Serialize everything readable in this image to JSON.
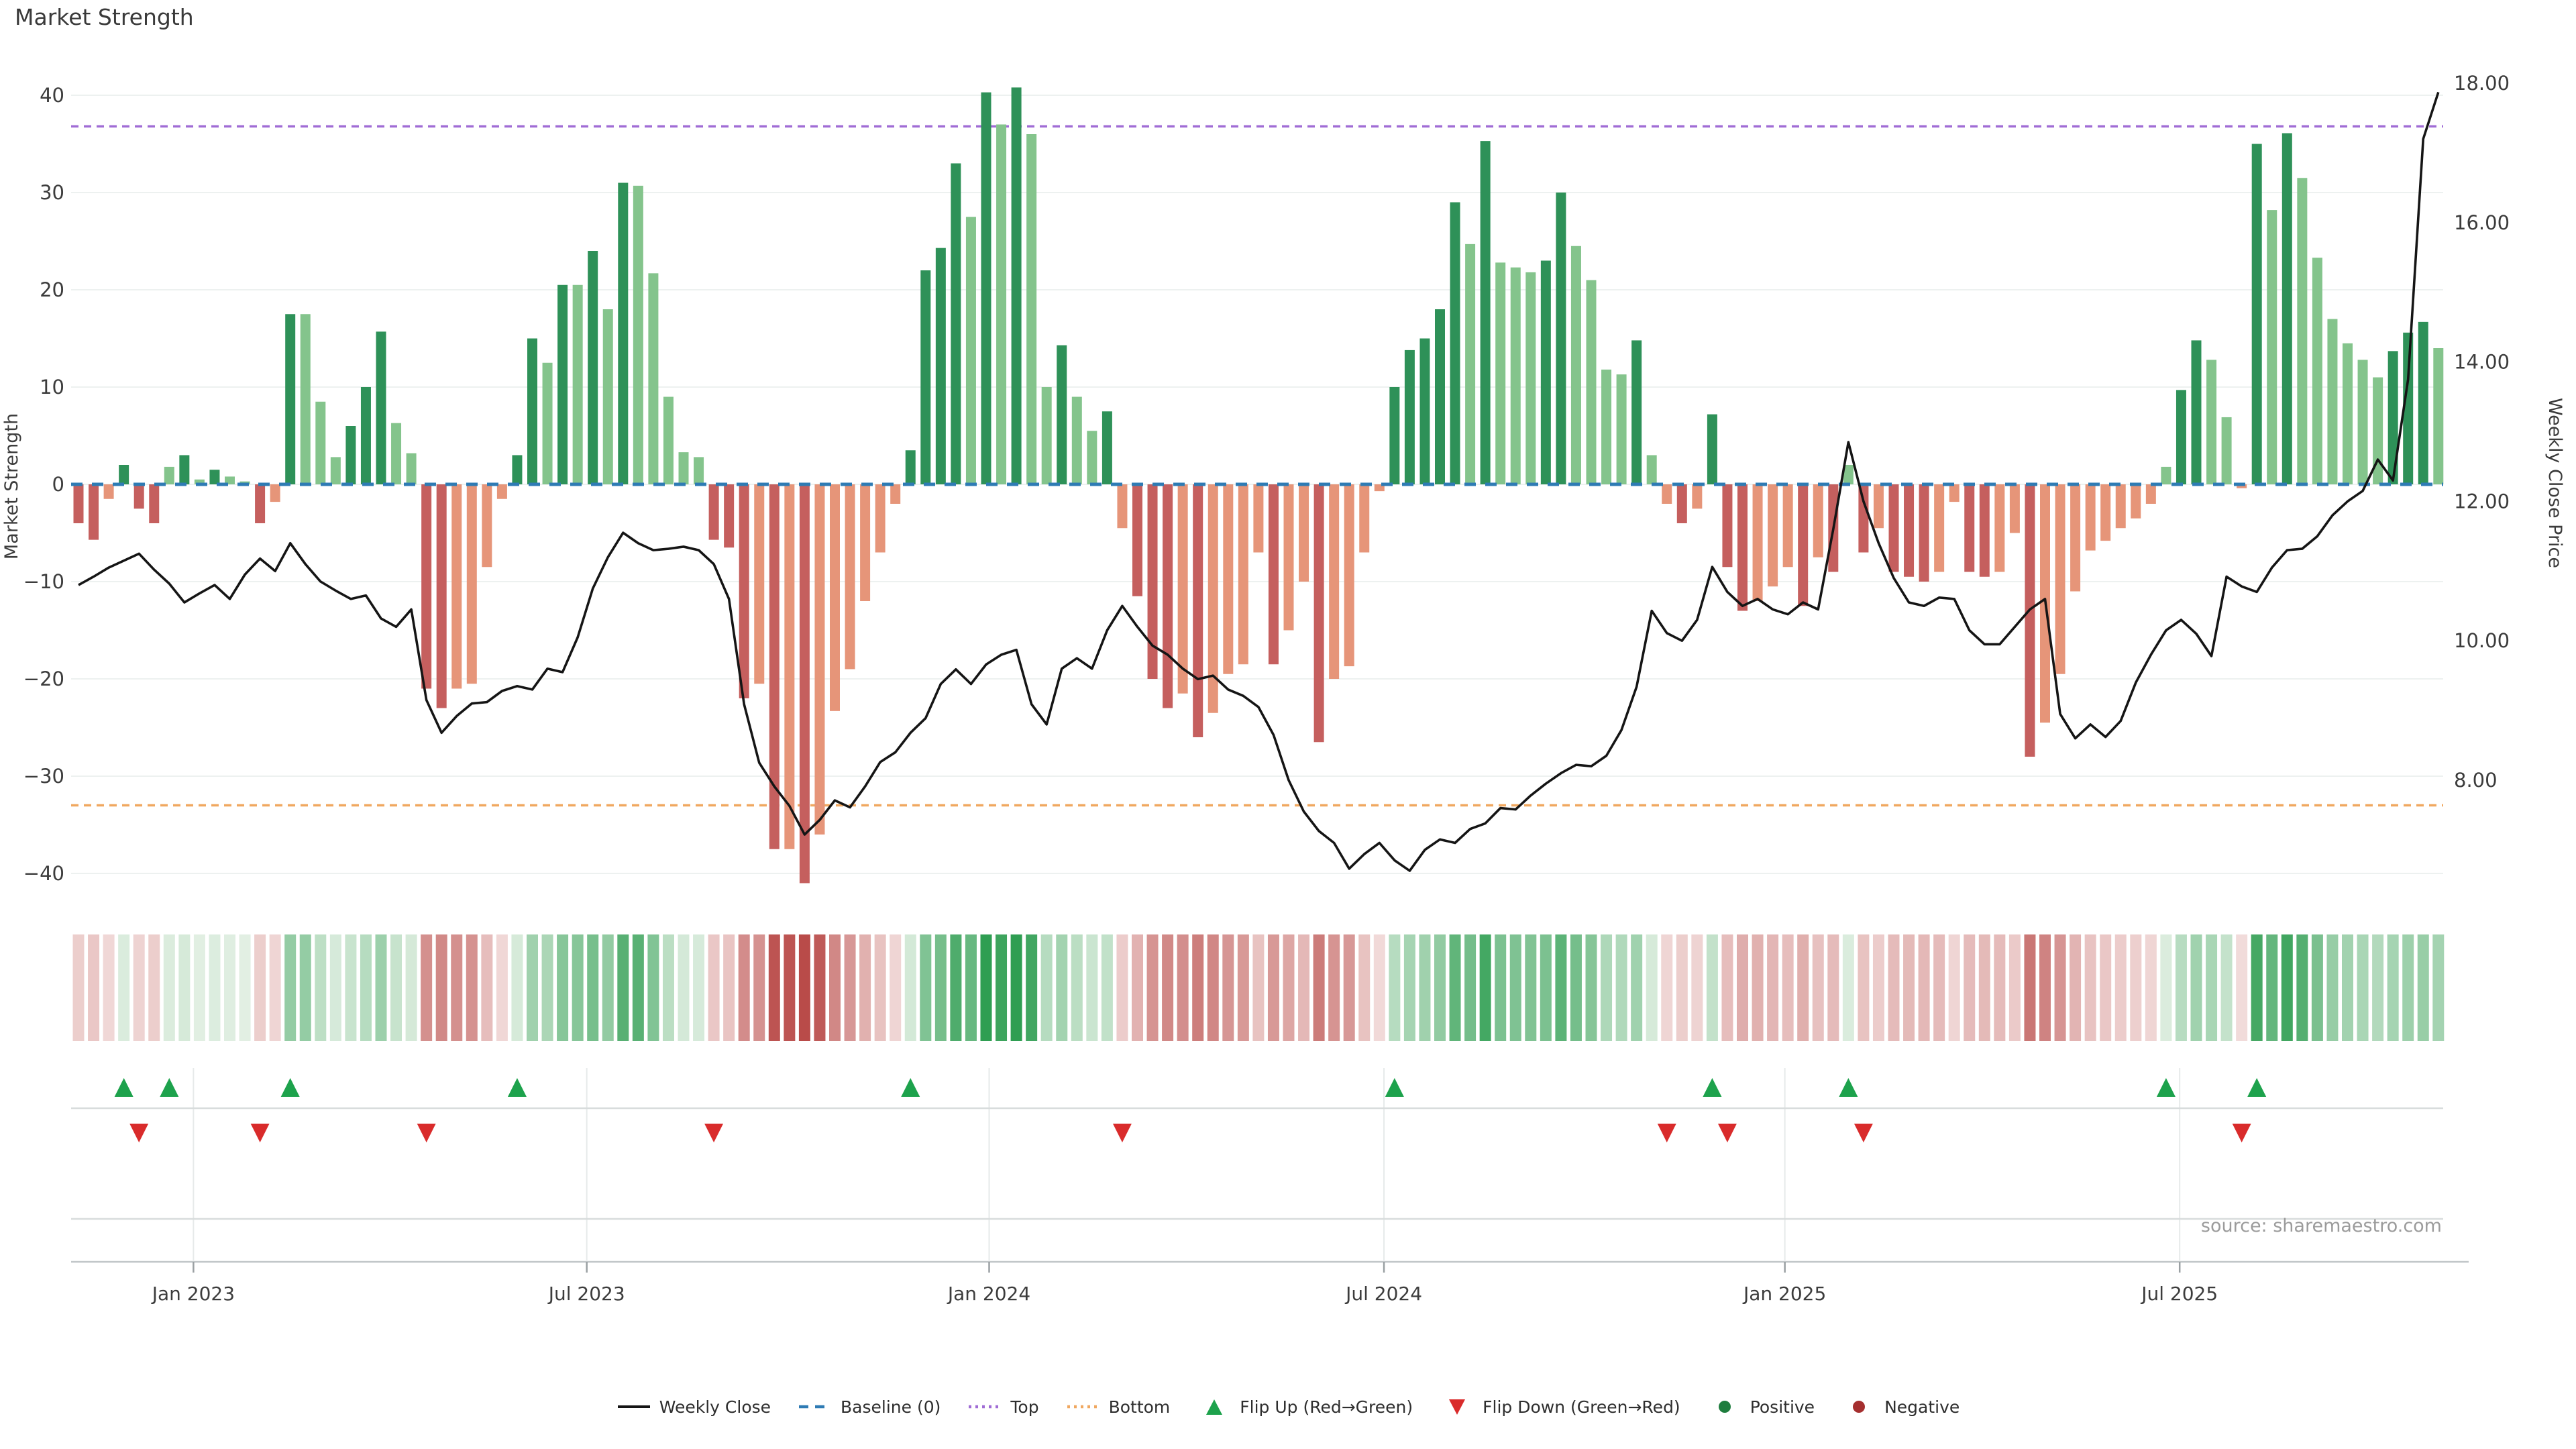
{
  "header": {
    "title": "Market Strength"
  },
  "source": {
    "label": "source: sharemaestro.com"
  },
  "colors": {
    "bar_positive_strong": "#2e9158",
    "bar_positive_weak": "#84c48c",
    "bar_negative_strong": "#c55f5e",
    "bar_negative_weak": "#e69579",
    "price_line": "#151515",
    "baseline": "#2e7bb4",
    "top_line": "#a06cd5",
    "bottom_line": "#f0a860",
    "flip_up": "#1da24c",
    "flip_down": "#d92b2b",
    "legend_positive_dot": "#1e7d3e",
    "legend_negative_dot": "#a52f2f",
    "gridline": "#edf1f0",
    "panel_line": "#d8dcdc",
    "axis_line": "#c2c7c9",
    "tick_text": "#3c3c3c",
    "heat_green_lo": "#e3f0e4",
    "heat_green_hi": "#2f9e52",
    "heat_red_lo": "#f2dcdb",
    "heat_red_hi": "#b94b49"
  },
  "legend": {
    "items": [
      {
        "type": "line",
        "color": "#151515",
        "label": "Weekly Close"
      },
      {
        "type": "dash",
        "color": "#2e7bb4",
        "label": "Baseline (0)"
      },
      {
        "type": "dots",
        "color": "#a06cd5",
        "label": "Top"
      },
      {
        "type": "dots",
        "color": "#f0a860",
        "label": "Bottom"
      },
      {
        "type": "tri-up",
        "color": "#1da24c",
        "label": "Flip Up (Red→Green)"
      },
      {
        "type": "tri-down",
        "color": "#d92b2b",
        "label": "Flip Down (Green→Red)"
      },
      {
        "type": "dot",
        "color": "#1e7d3e",
        "label": "Positive"
      },
      {
        "type": "dot",
        "color": "#a52f2f",
        "label": "Negative"
      }
    ]
  },
  "chart_data": {
    "type": "bar",
    "title": "Market Strength",
    "left_axis": {
      "label": "Market Strength",
      "tick_values": [
        40,
        30,
        20,
        10,
        0,
        -10,
        -20,
        -30,
        -40
      ],
      "tick_labels": [
        "40",
        "30",
        "20",
        "10",
        "0",
        "−10",
        "−20",
        "−30",
        "−40"
      ],
      "ylim": [
        -44,
        43
      ]
    },
    "right_axis": {
      "label": "Weekly Close Price",
      "tick_values": [
        18,
        16,
        14,
        12,
        10,
        8
      ],
      "tick_labels": [
        "18.00",
        "16.00",
        "14.00",
        "12.00",
        "10.00",
        "8.00"
      ],
      "ylim": [
        7.4,
        18.15
      ]
    },
    "x_axis": {
      "tick_labels": [
        "Jan 2023",
        "Jul 2023",
        "Jan 2024",
        "Jul 2024",
        "Jan 2025",
        "Jul 2025"
      ],
      "tick_weeks": [
        7.6,
        33.6,
        60.2,
        86.3,
        112.8,
        138.9
      ]
    },
    "baseline_value": 0,
    "top_line_value": 36.8,
    "bottom_line_value": -33,
    "series": [
      {
        "name": "Market Strength (weekly bars)",
        "values": [
          -4,
          -5.7,
          -1.5,
          2,
          -2.5,
          -4,
          1.8,
          3,
          0.5,
          1.5,
          0.8,
          0.3,
          -4,
          -1.8,
          17.5,
          17.5,
          8.5,
          2.8,
          6,
          10,
          15.7,
          6.3,
          3.2,
          -21,
          -23,
          -21,
          -20.5,
          -8.5,
          -1.5,
          3,
          15,
          12.5,
          20.5,
          20.5,
          24,
          18,
          31,
          30.7,
          21.7,
          9,
          3.3,
          2.8,
          -5.7,
          -6.5,
          -22,
          -20.5,
          -37.5,
          -37.5,
          -41,
          -36,
          -23.3,
          -19,
          -12,
          -7,
          -2,
          3.5,
          22,
          24.3,
          33,
          27.5,
          40.3,
          37,
          40.8,
          36,
          10,
          14.3,
          9,
          5.5,
          7.5,
          -4.5,
          -11.5,
          -20,
          -23,
          -21.5,
          -26,
          -23.5,
          -19.5,
          -18.5,
          -7,
          -18.5,
          -15,
          -10,
          -26.5,
          -20,
          -18.7,
          -7,
          -0.7,
          10,
          13.8,
          15,
          18,
          29,
          24.7,
          35.3,
          22.8,
          22.3,
          21.8,
          23,
          30,
          24.5,
          21,
          11.8,
          11.3,
          14.8,
          3,
          -2,
          -4,
          -2.5,
          7.2,
          -8.5,
          -13,
          -12,
          -10.5,
          -8.5,
          -12.5,
          -7.5,
          -9,
          2,
          -7,
          -4.5,
          -9,
          -9.5,
          -10,
          -9,
          -1.8,
          -9,
          -9.5,
          -9,
          -5,
          -28,
          -24.5,
          -19.5,
          -11,
          -6.8,
          -5.8,
          -4.5,
          -3.5,
          -2,
          1.8,
          9.7,
          14.8,
          12.8,
          6.9,
          -0.4,
          35,
          28.2,
          36.1,
          31.5,
          23.3,
          17,
          14.5,
          12.8,
          11,
          13.7,
          15.6,
          16.7,
          14
        ]
      },
      {
        "name": "Weekly Close (price line)",
        "values": [
          10.8,
          10.92,
          11.05,
          11.15,
          11.25,
          11.02,
          10.82,
          10.55,
          10.68,
          10.8,
          10.6,
          10.95,
          11.18,
          11.0,
          11.4,
          11.1,
          10.85,
          10.72,
          10.6,
          10.65,
          10.32,
          10.2,
          10.45,
          9.15,
          8.68,
          8.92,
          9.1,
          9.12,
          9.28,
          9.35,
          9.3,
          9.6,
          9.55,
          10.05,
          10.75,
          11.2,
          11.55,
          11.4,
          11.3,
          11.32,
          11.35,
          11.3,
          11.1,
          10.6,
          9.09,
          8.25,
          7.91,
          7.63,
          7.22,
          7.43,
          7.71,
          7.61,
          7.91,
          8.26,
          8.4,
          8.68,
          8.89,
          9.38,
          9.59,
          9.38,
          9.66,
          9.8,
          9.87,
          9.09,
          8.8,
          9.6,
          9.75,
          9.6,
          10.15,
          10.5,
          10.2,
          9.93,
          9.8,
          9.6,
          9.45,
          9.5,
          9.3,
          9.21,
          9.05,
          8.65,
          8.0,
          7.55,
          7.27,
          7.1,
          6.73,
          6.94,
          7.1,
          6.85,
          6.7,
          7.0,
          7.15,
          7.1,
          7.3,
          7.38,
          7.6,
          7.58,
          7.78,
          7.95,
          8.1,
          8.22,
          8.2,
          8.35,
          8.72,
          9.34,
          10.43,
          10.11,
          10.0,
          10.3,
          11.06,
          10.7,
          10.5,
          10.6,
          10.45,
          10.38,
          10.55,
          10.45,
          11.6,
          12.85,
          12.0,
          11.4,
          10.9,
          10.55,
          10.5,
          10.62,
          10.6,
          10.15,
          9.95,
          9.95,
          10.2,
          10.45,
          10.6,
          8.95,
          8.6,
          8.8,
          8.62,
          8.85,
          9.4,
          9.8,
          10.15,
          10.3,
          10.1,
          9.78,
          10.92,
          10.78,
          10.7,
          11.05,
          11.3,
          11.32,
          11.5,
          11.8,
          12.0,
          12.15,
          12.6,
          12.3,
          13.75,
          17.2,
          17.87
        ]
      }
    ],
    "flip_up_weeks": [
      3,
      6,
      14,
      29,
      55,
      87,
      108,
      117,
      138,
      144
    ],
    "flip_down_weeks": [
      4,
      12,
      23,
      42,
      69,
      105,
      109,
      118,
      143
    ],
    "heatmap": {
      "note": "one cell per week, colored red-to-green by bar value",
      "source_series": 0
    },
    "legend_position": "bottom",
    "grid": "horizontal"
  }
}
